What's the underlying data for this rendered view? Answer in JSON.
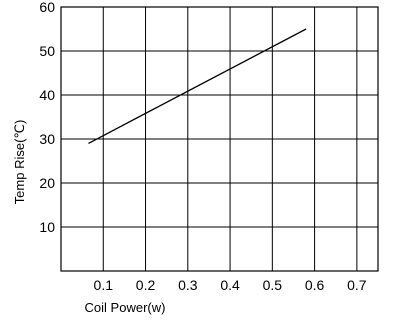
{
  "chart_data": {
    "type": "line",
    "title": "",
    "xlabel": "Coil Power(w)",
    "ylabel": "Temp Rise(℃)",
    "xlim": [
      0,
      0.75
    ],
    "ylim": [
      0,
      60
    ],
    "x_ticks": [
      0.1,
      0.2,
      0.3,
      0.4,
      0.5,
      0.6,
      0.7
    ],
    "x_tick_labels": [
      "0.1",
      "0.2",
      "0.3",
      "0.4",
      "0.5",
      "0.6",
      "0.7"
    ],
    "y_ticks": [
      10,
      20,
      30,
      40,
      50,
      60
    ],
    "y_tick_labels": [
      "10",
      "20",
      "30",
      "40",
      "50",
      "60"
    ],
    "grid": true,
    "series": [
      {
        "x": [
          0.065,
          0.58
        ],
        "y": [
          29,
          55
        ]
      }
    ]
  }
}
